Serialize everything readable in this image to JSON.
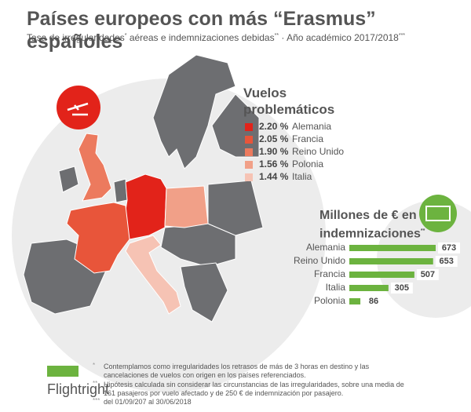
{
  "title": "Países europeos con más “Erasmus” españoles",
  "subtitle": [
    "Tasa de irregularidades",
    "*",
    " aéreas e indemnizaciones debidas",
    "**",
    " · Año académico 2017/2018",
    "***"
  ],
  "chart_data": [
    {
      "type": "map",
      "title": "Vuelos problemáticos",
      "categories": [
        "Alemania",
        "Francia",
        "Reino Unido",
        "Polonia",
        "Italia"
      ],
      "values": [
        2.2,
        2.05,
        1.9,
        1.56,
        1.44
      ],
      "value_labels": [
        "2.20 %",
        "2.05 %",
        "1.90 %",
        "1.56 %",
        "1.44 %"
      ],
      "colors": [
        "#e2231a",
        "#e8553a",
        "#ec7a5e",
        "#f1a088",
        "#f6c3b4"
      ]
    },
    {
      "type": "bar",
      "title": "Millones de € en indemnizaciones",
      "title_mark": "**",
      "categories": [
        "Alemania",
        "Reino Unido",
        "Francia",
        "Italia",
        "Polonia"
      ],
      "values": [
        673,
        653,
        507,
        305,
        86
      ],
      "color": "#6cb33f"
    }
  ],
  "footnotes": [
    {
      "mark": "*",
      "text": "Contemplamos como irregularidades los retrasos de más de 3 horas en destino y las cancelaciones de vuelos con origen en los países referenciados."
    },
    {
      "mark": "**",
      "text": "Hipótesis calculada sin considerar las circunstancias de las irregularidades, sobre una media de 161 pasajeros por vuelo afectado y de 250 € de indemnización por pasajero."
    },
    {
      "mark": "***",
      "text": "del 01/09/207 al 30/06/2018"
    }
  ],
  "logo": "Flightright"
}
